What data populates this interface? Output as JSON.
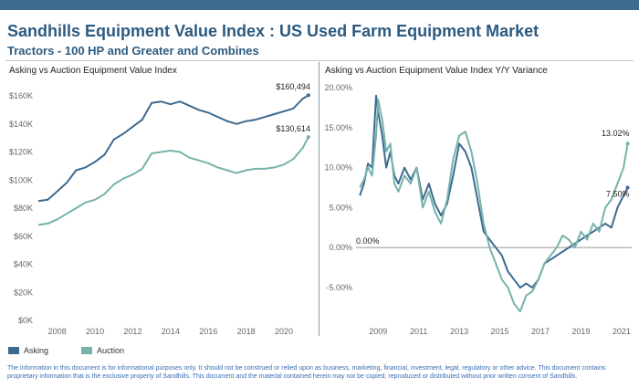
{
  "header": {
    "title": "Sandhills Equipment Value Index : US Used Farm Equipment Market",
    "subtitle": "Tractors - 100 HP and Greater and Combines",
    "bar_color": "#3d6a8f",
    "title_color": "#2c5a80"
  },
  "legend": [
    {
      "label": "Asking",
      "color": "#3d6a8f"
    },
    {
      "label": "Auction",
      "color": "#76b3aa"
    }
  ],
  "footer": {
    "text": "The information in this document is for informational purposes only.  It should not be construed or relied upon as business, marketing, financial, investment, legal, regulatory or other advice. This document contains proprietary information that is the exclusive property of Sandhills. This document and the material contained herein may not be copied, reproduced or distributed without prior written consent of Sandhills."
  },
  "chart_data": [
    {
      "type": "line",
      "title": "Asking vs Auction Equipment Value Index",
      "xlabel": "",
      "ylabel": "",
      "xlim": [
        2007.0,
        2021.5
      ],
      "ylim": [
        0,
        160000
      ],
      "x_ticks": [
        2008,
        2010,
        2012,
        2014,
        2016,
        2018,
        2020
      ],
      "y_ticks": [
        0,
        20000,
        40000,
        60000,
        80000,
        100000,
        120000,
        140000,
        160000
      ],
      "y_tick_labels": [
        "$0K",
        "$20K",
        "$40K",
        "$60K",
        "$80K",
        "$100K",
        "$120K",
        "$140K",
        "$160K"
      ],
      "grid": false,
      "annotations": [
        {
          "text": "$160,494",
          "series": "Asking"
        },
        {
          "text": "$130,614",
          "series": "Auction"
        }
      ],
      "series": [
        {
          "name": "Asking",
          "color": "#3d6a8f",
          "x": [
            2007.0,
            2007.5,
            2008.0,
            2008.5,
            2009.0,
            2009.5,
            2010.0,
            2010.5,
            2011.0,
            2011.5,
            2012.0,
            2012.5,
            2013.0,
            2013.5,
            2014.0,
            2014.5,
            2015.0,
            2015.5,
            2016.0,
            2016.5,
            2017.0,
            2017.5,
            2018.0,
            2018.5,
            2019.0,
            2019.5,
            2020.0,
            2020.5,
            2021.0,
            2021.3
          ],
          "values": [
            85000,
            86000,
            92000,
            98000,
            107000,
            109000,
            113000,
            118000,
            129000,
            133000,
            138000,
            143000,
            155000,
            156000,
            154000,
            156000,
            153000,
            150000,
            148000,
            145000,
            142000,
            140000,
            142000,
            143000,
            145000,
            147000,
            149000,
            151000,
            158000,
            160494
          ]
        },
        {
          "name": "Auction",
          "color": "#76b3aa",
          "x": [
            2007.0,
            2007.5,
            2008.0,
            2008.5,
            2009.0,
            2009.5,
            2010.0,
            2010.5,
            2011.0,
            2011.5,
            2012.0,
            2012.5,
            2013.0,
            2013.5,
            2014.0,
            2014.5,
            2015.0,
            2015.5,
            2016.0,
            2016.5,
            2017.0,
            2017.5,
            2018.0,
            2018.5,
            2019.0,
            2019.5,
            2020.0,
            2020.5,
            2021.0,
            2021.3
          ],
          "values": [
            68000,
            69000,
            72000,
            76000,
            80000,
            84000,
            86000,
            90000,
            97000,
            101000,
            104000,
            108000,
            119000,
            120000,
            121000,
            120000,
            116000,
            114000,
            112000,
            109000,
            107000,
            105000,
            107000,
            108000,
            108000,
            109000,
            111000,
            115000,
            123000,
            130614
          ]
        }
      ]
    },
    {
      "type": "line",
      "title": "Asking vs Auction Equipment Value Index Y/Y Variance",
      "xlabel": "",
      "ylabel": "",
      "xlim": [
        2008.0,
        2021.5
      ],
      "ylim": [
        -0.09,
        0.2
      ],
      "x_ticks": [
        2009,
        2011,
        2013,
        2015,
        2017,
        2019,
        2021
      ],
      "y_ticks": [
        -0.05,
        0.0,
        0.05,
        0.1,
        0.15,
        0.2
      ],
      "y_tick_labels": [
        "-5.00%",
        "0.00%",
        "5.00%",
        "10.00%",
        "15.00%",
        "20.00%"
      ],
      "grid": false,
      "annotations": [
        {
          "text": "0.00%",
          "series": "zero-line"
        },
        {
          "text": "13.02%",
          "series": "Auction"
        },
        {
          "text": "7.50%",
          "series": "Asking"
        }
      ],
      "series": [
        {
          "name": "Asking",
          "color": "#3d6a8f",
          "x": [
            2008.1,
            2008.3,
            2008.5,
            2008.7,
            2008.9,
            2009.0,
            2009.2,
            2009.4,
            2009.6,
            2009.8,
            2010.0,
            2010.3,
            2010.6,
            2010.9,
            2011.2,
            2011.5,
            2011.8,
            2012.1,
            2012.4,
            2012.7,
            2013.0,
            2013.3,
            2013.6,
            2013.9,
            2014.2,
            2014.5,
            2014.8,
            2015.1,
            2015.4,
            2015.7,
            2016.0,
            2016.3,
            2016.6,
            2016.9,
            2017.2,
            2017.5,
            2017.8,
            2018.1,
            2018.4,
            2018.7,
            2019.0,
            2019.3,
            2019.6,
            2019.9,
            2020.2,
            2020.5,
            2020.8,
            2021.1,
            2021.3
          ],
          "values": [
            0.065,
            0.08,
            0.105,
            0.1,
            0.19,
            0.17,
            0.14,
            0.1,
            0.12,
            0.09,
            0.08,
            0.1,
            0.085,
            0.1,
            0.06,
            0.08,
            0.055,
            0.04,
            0.055,
            0.09,
            0.13,
            0.12,
            0.1,
            0.06,
            0.02,
            0.01,
            0.0,
            -0.01,
            -0.03,
            -0.04,
            -0.05,
            -0.045,
            -0.05,
            -0.04,
            -0.02,
            -0.015,
            -0.01,
            -0.005,
            0.0,
            0.005,
            0.01,
            0.015,
            0.02,
            0.025,
            0.03,
            0.025,
            0.05,
            0.065,
            0.075
          ]
        },
        {
          "name": "Auction",
          "color": "#76b3aa",
          "x": [
            2008.1,
            2008.3,
            2008.5,
            2008.7,
            2008.9,
            2009.0,
            2009.2,
            2009.4,
            2009.6,
            2009.8,
            2010.0,
            2010.3,
            2010.6,
            2010.9,
            2011.2,
            2011.5,
            2011.8,
            2012.1,
            2012.4,
            2012.7,
            2013.0,
            2013.3,
            2013.6,
            2013.9,
            2014.2,
            2014.5,
            2014.8,
            2015.1,
            2015.4,
            2015.7,
            2016.0,
            2016.3,
            2016.6,
            2016.9,
            2017.2,
            2017.5,
            2017.8,
            2018.1,
            2018.4,
            2018.7,
            2019.0,
            2019.3,
            2019.6,
            2019.9,
            2020.2,
            2020.5,
            2020.8,
            2021.1,
            2021.3
          ],
          "values": [
            0.075,
            0.085,
            0.1,
            0.09,
            0.14,
            0.185,
            0.16,
            0.12,
            0.13,
            0.08,
            0.07,
            0.09,
            0.08,
            0.1,
            0.05,
            0.07,
            0.045,
            0.03,
            0.06,
            0.11,
            0.14,
            0.145,
            0.12,
            0.08,
            0.03,
            0.0,
            -0.02,
            -0.04,
            -0.05,
            -0.07,
            -0.08,
            -0.06,
            -0.055,
            -0.04,
            -0.02,
            -0.01,
            0.0,
            0.015,
            0.01,
            0.0,
            0.02,
            0.01,
            0.03,
            0.02,
            0.05,
            0.06,
            0.08,
            0.1,
            0.1302
          ]
        }
      ]
    }
  ]
}
